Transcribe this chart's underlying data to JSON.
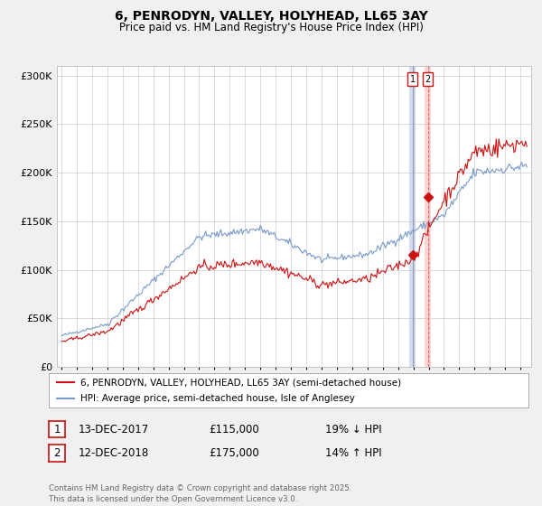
{
  "title": "6, PENRODYN, VALLEY, HOLYHEAD, LL65 3AY",
  "subtitle": "Price paid vs. HM Land Registry's House Price Index (HPI)",
  "ylabel_ticks": [
    "£0",
    "£50K",
    "£100K",
    "£150K",
    "£200K",
    "£250K",
    "£300K"
  ],
  "ytick_values": [
    0,
    50000,
    100000,
    150000,
    200000,
    250000,
    300000
  ],
  "ylim": [
    0,
    310000
  ],
  "xlim_start": 1994.7,
  "xlim_end": 2025.7,
  "hpi_color": "#7799cc",
  "price_color": "#cc1111",
  "marker_color": "#cc1111",
  "vline1_color": "#aabbdd",
  "vline2_color": "#ffaaaa",
  "sale1_year": 2017.958,
  "sale1_price": 115000,
  "sale2_year": 2018.958,
  "sale2_price": 175000,
  "legend_label_price": "6, PENRODYN, VALLEY, HOLYHEAD, LL65 3AY (semi-detached house)",
  "legend_label_hpi": "HPI: Average price, semi-detached house, Isle of Anglesey",
  "table_row1": [
    "1",
    "13-DEC-2017",
    "£115,000",
    "19% ↓ HPI"
  ],
  "table_row2": [
    "2",
    "12-DEC-2018",
    "£175,000",
    "14% ↑ HPI"
  ],
  "footnote": "Contains HM Land Registry data © Crown copyright and database right 2025.\nThis data is licensed under the Open Government Licence v3.0.",
  "bg_color": "#f0f0f0",
  "plot_bg_color": "#ffffff",
  "grid_color": "#cccccc",
  "seed": 42
}
